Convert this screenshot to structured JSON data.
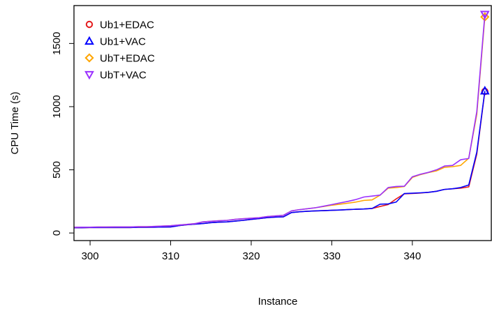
{
  "chart_data": {
    "type": "line",
    "xlabel": "Instance",
    "ylabel": "CPU Time (s)",
    "xlim": [
      298,
      349.8
    ],
    "ylim": [
      -60,
      1800
    ],
    "x_ticks": [
      300,
      310,
      320,
      330,
      340
    ],
    "y_ticks": [
      0,
      500,
      1000,
      1500
    ],
    "x_tick_labels": [
      "300",
      "310",
      "320",
      "330",
      "340"
    ],
    "y_tick_labels": [
      "0",
      "500",
      "1000",
      "1500"
    ],
    "legend_position": "top-left",
    "x": [
      298,
      299,
      300,
      301,
      302,
      303,
      304,
      305,
      306,
      307,
      308,
      309,
      310,
      311,
      312,
      313,
      314,
      315,
      316,
      317,
      318,
      319,
      320,
      321,
      322,
      323,
      324,
      325,
      326,
      327,
      328,
      329,
      330,
      331,
      332,
      333,
      334,
      335,
      336,
      337,
      338,
      339,
      340,
      341,
      342,
      343,
      344,
      345,
      346,
      347,
      348,
      349
    ],
    "series": [
      {
        "name": "Ub1+EDAC",
        "color": "#E41A1C",
        "marker": "circle",
        "values": [
          42,
          42,
          43,
          43,
          43,
          43,
          43,
          43,
          45,
          45,
          46,
          47,
          48,
          58,
          65,
          70,
          75,
          82,
          86,
          88,
          94,
          100,
          108,
          114,
          122,
          126,
          128,
          162,
          168,
          172,
          175,
          177,
          180,
          182,
          185,
          188,
          190,
          194,
          210,
          225,
          270,
          310,
          313,
          316,
          322,
          330,
          345,
          350,
          355,
          365,
          625,
          1120
        ]
      },
      {
        "name": "Ub1+VAC",
        "color": "#0000FF",
        "marker": "triangle-up",
        "values": [
          42,
          42,
          43,
          43,
          43,
          43,
          43,
          43,
          45,
          45,
          46,
          47,
          48,
          58,
          65,
          70,
          75,
          82,
          86,
          88,
          94,
          100,
          108,
          114,
          122,
          126,
          128,
          162,
          168,
          172,
          175,
          177,
          180,
          182,
          185,
          188,
          190,
          194,
          228,
          230,
          245,
          312,
          315,
          318,
          322,
          330,
          345,
          350,
          360,
          380,
          640,
          1125
        ]
      },
      {
        "name": "UbT+EDAC",
        "color": "#FFA500",
        "marker": "diamond",
        "values": [
          45,
          46,
          46,
          47,
          47,
          48,
          48,
          48,
          50,
          50,
          52,
          55,
          58,
          63,
          68,
          74,
          88,
          93,
          97,
          100,
          108,
          113,
          117,
          121,
          130,
          135,
          140,
          175,
          185,
          192,
          200,
          210,
          220,
          228,
          236,
          245,
          258,
          262,
          300,
          355,
          360,
          368,
          440,
          462,
          478,
          492,
          520,
          525,
          535,
          592,
          940,
          1710
        ]
      },
      {
        "name": "UbT+VAC",
        "color": "#9B30FF",
        "marker": "triangle-down",
        "values": [
          45,
          46,
          46,
          47,
          47,
          48,
          48,
          48,
          50,
          50,
          52,
          55,
          58,
          63,
          68,
          74,
          88,
          93,
          97,
          100,
          108,
          113,
          117,
          121,
          130,
          135,
          140,
          175,
          185,
          192,
          200,
          212,
          225,
          238,
          250,
          265,
          285,
          292,
          300,
          360,
          368,
          370,
          445,
          465,
          480,
          500,
          530,
          535,
          580,
          590,
          960,
          1730
        ]
      }
    ]
  }
}
